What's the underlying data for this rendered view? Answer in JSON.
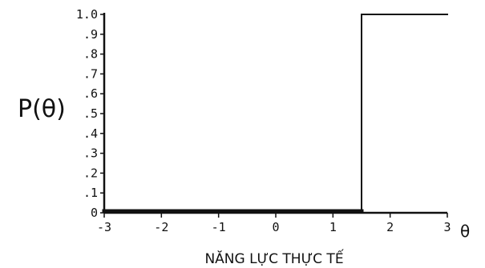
{
  "chart_data": {
    "type": "line",
    "ylabel": "P(θ)",
    "xlabel": "NĂNG LỰC THỰC TẾ",
    "x_symbol": "θ",
    "xlim": [
      -3,
      3
    ],
    "ylim": [
      0,
      1.0
    ],
    "x_ticks": [
      -3,
      -2,
      -1,
      0,
      1,
      2,
      3
    ],
    "x_tick_labels": [
      "-3",
      "-2",
      "-1",
      "0",
      "1",
      "2",
      "3"
    ],
    "y_ticks": [
      0,
      0.1,
      0.2,
      0.3,
      0.4,
      0.5,
      0.6,
      0.7,
      0.8,
      0.9,
      1.0
    ],
    "y_tick_labels": [
      "0",
      ".1",
      ".2",
      ".3",
      ".4",
      ".5",
      ".6",
      ".7",
      ".8",
      ".9",
      "1.0"
    ],
    "grid": false,
    "legend": false,
    "series": [
      {
        "x": [
          -3,
          1.5,
          1.5,
          3
        ],
        "y": [
          0,
          0,
          1.0,
          1.0
        ]
      }
    ],
    "colors": {
      "line": "#111111",
      "axis": "#111111",
      "background": "#ffffff"
    }
  }
}
